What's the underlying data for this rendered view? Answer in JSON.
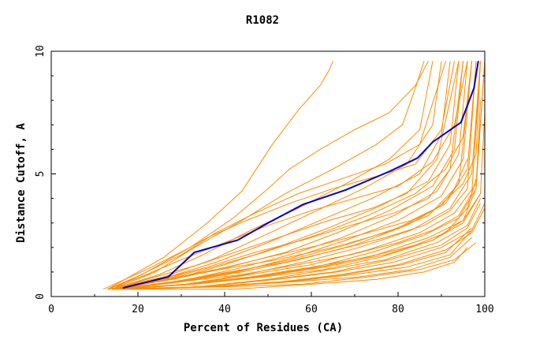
{
  "chart_data": {
    "type": "line",
    "title": "R1082",
    "xlabel": "Percent of Residues (CA)",
    "ylabel": "Distance Cutoff, A",
    "xlim": [
      0,
      100
    ],
    "ylim": [
      0,
      10
    ],
    "x_ticks": [
      0,
      20,
      40,
      60,
      80,
      100
    ],
    "y_ticks": [
      0,
      5,
      10
    ],
    "grid": false,
    "legend": "none",
    "colors": {
      "highlight": "#0000cc",
      "models": "#ff8c00"
    },
    "highlight_series": {
      "x": [
        16.5,
        27,
        33,
        43,
        50,
        58,
        68,
        78,
        84.5,
        88,
        94.5,
        97.5,
        98.5
      ],
      "y": [
        0.35,
        0.8,
        1.8,
        2.3,
        3.0,
        3.75,
        4.35,
        5.1,
        5.65,
        6.3,
        7.1,
        8.5,
        9.6
      ]
    },
    "series": [
      {
        "x": [
          13,
          20,
          26,
          31,
          36,
          44,
          51,
          57,
          62,
          64,
          65
        ],
        "y": [
          0.3,
          1.0,
          1.6,
          2.3,
          3.0,
          4.3,
          6.2,
          7.6,
          8.6,
          9.2,
          9.6
        ]
      },
      {
        "x": [
          12,
          22,
          32,
          42,
          50,
          55,
          62,
          70,
          78,
          84,
          87
        ],
        "y": [
          0.3,
          1.1,
          2.0,
          3.2,
          4.4,
          5.2,
          6.0,
          6.8,
          7.5,
          8.6,
          9.6
        ]
      },
      {
        "x": [
          14,
          24,
          33,
          44,
          54,
          65,
          75,
          81,
          84,
          86
        ],
        "y": [
          0.3,
          1.0,
          2.0,
          3.1,
          4.2,
          5.2,
          6.2,
          7.0,
          8.5,
          9.6
        ]
      },
      {
        "x": [
          14,
          25,
          35,
          46,
          57,
          68,
          78,
          85,
          88
        ],
        "y": [
          0.3,
          0.9,
          1.7,
          2.7,
          3.6,
          4.6,
          5.6,
          6.8,
          9.6
        ]
      },
      {
        "x": [
          13,
          26,
          37,
          48,
          60,
          72,
          82,
          88,
          90
        ],
        "y": [
          0.3,
          0.8,
          1.5,
          2.4,
          3.4,
          4.4,
          5.4,
          7.0,
          9.6
        ]
      },
      {
        "x": [
          15,
          27,
          38,
          50,
          62,
          74,
          85,
          90,
          92
        ],
        "y": [
          0.3,
          0.8,
          1.4,
          2.2,
          3.1,
          4.0,
          5.0,
          6.6,
          9.6
        ]
      },
      {
        "x": [
          14,
          28,
          40,
          52,
          64,
          76,
          87,
          92,
          94
        ],
        "y": [
          0.3,
          0.7,
          1.3,
          2.0,
          2.8,
          3.7,
          4.7,
          6.2,
          9.6
        ]
      },
      {
        "x": [
          13,
          28,
          41,
          54,
          66,
          78,
          88,
          93,
          95
        ],
        "y": [
          0.3,
          0.7,
          1.2,
          1.8,
          2.6,
          3.5,
          4.5,
          6.0,
          9.6
        ]
      },
      {
        "x": [
          15,
          29,
          42,
          55,
          67,
          79,
          89,
          94,
          96
        ],
        "y": [
          0.3,
          0.6,
          1.1,
          1.7,
          2.4,
          3.3,
          4.3,
          5.8,
          9.6
        ]
      },
      {
        "x": [
          14,
          30,
          43,
          56,
          68,
          80,
          90,
          95,
          97
        ],
        "y": [
          0.3,
          0.6,
          1.0,
          1.6,
          2.3,
          3.1,
          4.1,
          5.6,
          9.6
        ]
      },
      {
        "x": [
          15,
          30,
          44,
          57,
          70,
          82,
          91,
          96,
          98
        ],
        "y": [
          0.3,
          0.6,
          1.0,
          1.5,
          2.1,
          2.9,
          3.8,
          5.2,
          9.6
        ]
      },
      {
        "x": [
          14,
          31,
          45,
          58,
          71,
          83,
          92,
          97,
          99
        ],
        "y": [
          0.3,
          0.5,
          0.9,
          1.4,
          2.0,
          2.7,
          3.6,
          5.0,
          9.6
        ]
      },
      {
        "x": [
          16,
          32,
          46,
          60,
          73,
          85,
          93,
          98,
          100
        ],
        "y": [
          0.3,
          0.5,
          0.9,
          1.3,
          1.9,
          2.6,
          3.4,
          4.6,
          9.6
        ]
      },
      {
        "x": [
          15,
          32,
          47,
          61,
          74,
          86,
          94,
          98,
          99
        ],
        "y": [
          0.3,
          0.5,
          0.8,
          1.2,
          1.8,
          2.5,
          3.2,
          4.4,
          8.0
        ]
      },
      {
        "x": [
          16,
          33,
          48,
          62,
          75,
          87,
          95,
          99,
          100
        ],
        "y": [
          0.3,
          0.5,
          0.8,
          1.2,
          1.7,
          2.4,
          3.1,
          4.2,
          7.5
        ]
      },
      {
        "x": [
          15,
          33,
          49,
          63,
          76,
          88,
          95,
          99
        ],
        "y": [
          0.3,
          0.5,
          0.8,
          1.1,
          1.6,
          2.3,
          3.0,
          4.2
        ]
      },
      {
        "x": [
          16,
          34,
          50,
          64,
          77,
          89,
          96,
          99
        ],
        "y": [
          0.3,
          0.4,
          0.7,
          1.1,
          1.5,
          2.2,
          2.9,
          4.0
        ]
      },
      {
        "x": [
          14,
          34,
          51,
          65,
          78,
          90,
          96,
          99
        ],
        "y": [
          0.3,
          0.4,
          0.7,
          1.0,
          1.5,
          2.1,
          2.8,
          3.8
        ]
      },
      {
        "x": [
          16,
          35,
          52,
          66,
          79,
          90,
          97,
          100
        ],
        "y": [
          0.3,
          0.4,
          0.7,
          1.0,
          1.4,
          2.0,
          2.7,
          3.8
        ]
      },
      {
        "x": [
          15,
          36,
          53,
          67,
          80,
          91,
          97,
          100
        ],
        "y": [
          0.3,
          0.4,
          0.6,
          0.9,
          1.3,
          1.9,
          2.6,
          3.6
        ]
      },
      {
        "x": [
          17,
          36,
          54,
          68,
          81,
          91,
          97
        ],
        "y": [
          0.3,
          0.4,
          0.6,
          0.9,
          1.3,
          1.8,
          2.8
        ]
      },
      {
        "x": [
          16,
          37,
          55,
          70,
          82,
          92,
          97
        ],
        "y": [
          0.3,
          0.4,
          0.6,
          0.9,
          1.2,
          1.7,
          2.7
        ]
      },
      {
        "x": [
          13,
          22,
          30,
          40,
          50,
          60,
          70,
          80,
          88,
          93,
          96
        ],
        "y": [
          0.3,
          0.9,
          1.5,
          2.2,
          2.9,
          3.5,
          4.0,
          4.5,
          5.5,
          7.0,
          9.6
        ]
      },
      {
        "x": [
          14,
          24,
          34,
          44,
          54,
          64,
          74,
          82,
          89,
          94
        ],
        "y": [
          0.3,
          0.8,
          1.3,
          1.9,
          2.5,
          3.1,
          3.6,
          4.2,
          5.6,
          9.6
        ]
      },
      {
        "x": [
          13,
          25,
          36,
          47,
          58,
          69,
          79,
          87,
          92,
          95
        ],
        "y": [
          0.3,
          0.7,
          1.2,
          1.8,
          2.3,
          2.9,
          3.4,
          4.0,
          5.2,
          9.6
        ]
      },
      {
        "x": [
          15,
          26,
          38,
          50,
          62,
          73,
          83,
          90,
          94,
          97
        ],
        "y": [
          0.3,
          0.7,
          1.1,
          1.6,
          2.1,
          2.6,
          3.1,
          3.7,
          4.6,
          9.6
        ]
      },
      {
        "x": [
          14,
          28,
          41,
          54,
          66,
          77,
          86,
          92,
          96,
          98
        ],
        "y": [
          0.3,
          0.6,
          1.0,
          1.4,
          1.9,
          2.4,
          2.9,
          3.5,
          4.4,
          9.6
        ]
      },
      {
        "x": [
          16,
          30,
          44,
          57,
          69,
          80,
          88,
          94,
          97,
          99
        ],
        "y": [
          0.3,
          0.6,
          0.9,
          1.3,
          1.7,
          2.2,
          2.7,
          3.3,
          4.2,
          9.6
        ]
      },
      {
        "x": [
          15,
          27,
          39,
          52,
          65,
          77,
          87,
          93,
          96
        ],
        "y": [
          0.3,
          0.7,
          1.1,
          1.5,
          2.0,
          2.6,
          3.3,
          4.4,
          5.6
        ]
      },
      {
        "x": [
          17,
          31,
          46,
          60,
          73,
          84,
          91,
          96,
          98
        ],
        "y": [
          0.3,
          0.5,
          0.8,
          1.2,
          1.6,
          2.1,
          2.6,
          3.6,
          4.8
        ]
      },
      {
        "x": [
          13,
          21,
          28,
          36,
          45,
          55,
          65,
          75,
          84,
          90,
          93
        ],
        "y": [
          0.3,
          0.9,
          1.6,
          2.4,
          3.1,
          3.8,
          4.4,
          4.9,
          5.4,
          6.8,
          9.6
        ]
      },
      {
        "x": [
          14,
          22,
          30,
          38,
          47,
          57,
          67,
          77,
          85,
          91
        ],
        "y": [
          0.3,
          1.0,
          1.7,
          2.6,
          3.4,
          4.2,
          4.8,
          5.4,
          6.2,
          9.6
        ]
      },
      {
        "x": [
          18,
          38,
          56,
          71,
          83,
          92,
          97
        ],
        "y": [
          0.3,
          0.4,
          0.6,
          0.8,
          1.1,
          1.6,
          2.4
        ]
      },
      {
        "x": [
          17,
          40,
          58,
          73,
          85,
          93,
          98
        ],
        "y": [
          0.3,
          0.4,
          0.5,
          0.8,
          1.1,
          1.5,
          2.2
        ]
      },
      {
        "x": [
          18,
          42,
          60,
          75,
          86,
          93,
          96
        ],
        "y": [
          0.3,
          0.3,
          0.5,
          0.7,
          1.0,
          1.4,
          2.0
        ]
      },
      {
        "x": [
          16,
          29,
          42,
          55,
          68,
          80,
          89,
          95,
          98,
          99
        ],
        "y": [
          0.3,
          0.6,
          1.0,
          1.5,
          2.1,
          2.8,
          3.6,
          4.6,
          5.8,
          9.6
        ]
      },
      {
        "x": [
          15,
          26,
          37,
          49,
          61,
          73,
          84,
          91,
          95,
          97
        ],
        "y": [
          0.3,
          0.7,
          1.2,
          1.8,
          2.5,
          3.3,
          4.2,
          5.2,
          6.5,
          9.6
        ]
      },
      {
        "x": [
          14,
          32,
          48,
          63,
          77,
          88,
          95,
          98,
          100
        ],
        "y": [
          0.3,
          0.5,
          0.8,
          1.2,
          1.7,
          2.3,
          3.1,
          4.4,
          9.6
        ]
      }
    ]
  }
}
